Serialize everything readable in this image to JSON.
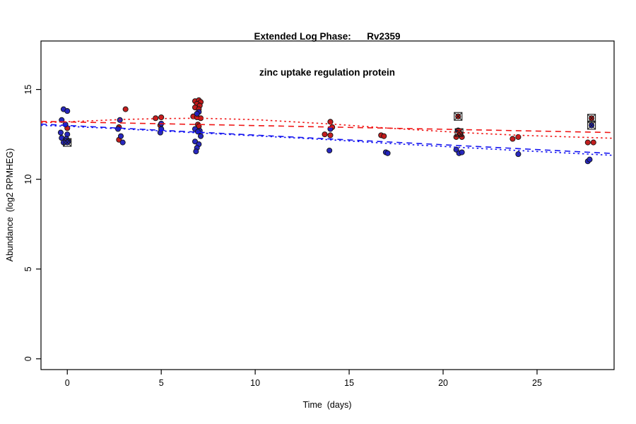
{
  "chart_data": {
    "type": "scatter",
    "title": "Extended Log Phase:      Rv2359",
    "subtitle": "zinc uptake regulation protein",
    "xlabel": "Time  (days)",
    "ylabel": "Abundance  (log2 RPMHEG)",
    "xlim": [
      -1.4,
      29.1
    ],
    "ylim": [
      -0.6,
      17.7
    ],
    "xticks": [
      0,
      5,
      10,
      15,
      20,
      25
    ],
    "yticks": [
      0,
      5,
      10,
      15
    ],
    "grid": false,
    "legend": null,
    "colors": {
      "red_point": "#c11717",
      "blue_point": "#2121bd",
      "red_line": "#f01515",
      "blue_line": "#1515f0",
      "point_outline": "#141414",
      "marker_outline": "#1a1a1a",
      "axis": "#000000"
    },
    "series": [
      {
        "name": "red-condition",
        "color_key": "red_point",
        "points": [
          [
            0.0,
            12.85
          ],
          [
            3.1,
            13.9
          ],
          [
            2.75,
            12.9
          ],
          [
            2.75,
            12.2
          ],
          [
            4.7,
            13.4
          ],
          [
            5.0,
            13.45
          ],
          [
            4.95,
            13.0
          ],
          [
            6.8,
            14.35
          ],
          [
            7.0,
            14.4
          ],
          [
            7.1,
            14.3
          ],
          [
            6.9,
            14.2
          ],
          [
            7.05,
            14.1
          ],
          [
            6.8,
            14.0
          ],
          [
            7.0,
            13.9
          ],
          [
            6.7,
            13.5
          ],
          [
            6.9,
            13.45
          ],
          [
            7.1,
            13.4
          ],
          [
            6.95,
            13.05
          ],
          [
            7.0,
            12.95
          ],
          [
            14.0,
            13.2
          ],
          [
            14.1,
            12.9
          ],
          [
            13.7,
            12.5
          ],
          [
            14.0,
            12.45
          ],
          [
            16.7,
            12.45
          ],
          [
            16.85,
            12.4
          ],
          [
            20.7,
            12.35
          ],
          [
            21.0,
            12.35
          ],
          [
            20.9,
            12.55
          ],
          [
            23.7,
            12.25
          ],
          [
            24.0,
            12.35
          ],
          [
            27.7,
            12.05
          ],
          [
            28.0,
            12.05
          ]
        ]
      },
      {
        "name": "blue-condition",
        "color_key": "blue_point",
        "points": [
          [
            -0.2,
            13.9
          ],
          [
            0.0,
            13.8
          ],
          [
            -0.3,
            13.3
          ],
          [
            -0.1,
            13.05
          ],
          [
            -0.35,
            12.6
          ],
          [
            0.0,
            12.5
          ],
          [
            -0.3,
            12.3
          ],
          [
            -0.05,
            12.25
          ],
          [
            -0.2,
            12.05
          ],
          [
            0.05,
            12.1
          ],
          [
            2.8,
            13.3
          ],
          [
            2.7,
            12.8
          ],
          [
            2.85,
            12.4
          ],
          [
            2.95,
            12.05
          ],
          [
            5.0,
            13.1
          ],
          [
            5.0,
            12.8
          ],
          [
            4.95,
            12.6
          ],
          [
            7.0,
            13.75
          ],
          [
            6.9,
            13.65
          ],
          [
            6.8,
            12.8
          ],
          [
            7.05,
            12.7
          ],
          [
            6.95,
            12.65
          ],
          [
            7.1,
            12.4
          ],
          [
            6.8,
            12.1
          ],
          [
            7.0,
            11.95
          ],
          [
            6.9,
            11.75
          ],
          [
            6.85,
            11.55
          ],
          [
            14.0,
            12.8
          ],
          [
            13.95,
            11.6
          ],
          [
            16.95,
            11.5
          ],
          [
            17.05,
            11.45
          ],
          [
            20.8,
            12.72
          ],
          [
            20.7,
            11.65
          ],
          [
            20.85,
            11.45
          ],
          [
            21.0,
            11.5
          ],
          [
            24.0,
            11.4
          ],
          [
            27.7,
            11.0
          ],
          [
            27.8,
            11.1
          ]
        ]
      }
    ],
    "marked_points": [
      {
        "x": 0.0,
        "y": 12.05,
        "series": "blue"
      },
      {
        "x": 20.8,
        "y": 13.5,
        "series": "red"
      },
      {
        "x": 20.85,
        "y": 12.6,
        "series": "red"
      },
      {
        "x": 27.9,
        "y": 13.4,
        "series": "red"
      },
      {
        "x": 27.9,
        "y": 13.0,
        "series": "blue"
      }
    ],
    "trend_lines": [
      {
        "name": "red-linear-fit",
        "style": "dashed",
        "color_key": "red_line",
        "points": [
          [
            -1.4,
            13.22
          ],
          [
            29.1,
            12.6
          ]
        ]
      },
      {
        "name": "red-smooth-fit",
        "style": "dotted",
        "color_key": "red_line",
        "points": [
          [
            -1.4,
            13.15
          ],
          [
            0,
            13.2
          ],
          [
            3,
            13.33
          ],
          [
            5,
            13.38
          ],
          [
            7,
            13.4
          ],
          [
            10,
            13.32
          ],
          [
            14,
            13.08
          ],
          [
            17,
            12.85
          ],
          [
            21,
            12.6
          ],
          [
            24,
            12.45
          ],
          [
            29.1,
            12.28
          ]
        ]
      },
      {
        "name": "blue-linear-fit",
        "style": "dashed",
        "color_key": "blue_line",
        "points": [
          [
            -1.4,
            13.07
          ],
          [
            29.1,
            11.43
          ]
        ]
      },
      {
        "name": "blue-smooth-fit",
        "style": "dotted",
        "color_key": "blue_line",
        "points": [
          [
            -1.4,
            13.0
          ],
          [
            0,
            12.95
          ],
          [
            3,
            12.8
          ],
          [
            7,
            12.58
          ],
          [
            10,
            12.42
          ],
          [
            14,
            12.2
          ],
          [
            17,
            12.0
          ],
          [
            21,
            11.77
          ],
          [
            24,
            11.6
          ],
          [
            29.1,
            11.33
          ]
        ]
      }
    ]
  }
}
